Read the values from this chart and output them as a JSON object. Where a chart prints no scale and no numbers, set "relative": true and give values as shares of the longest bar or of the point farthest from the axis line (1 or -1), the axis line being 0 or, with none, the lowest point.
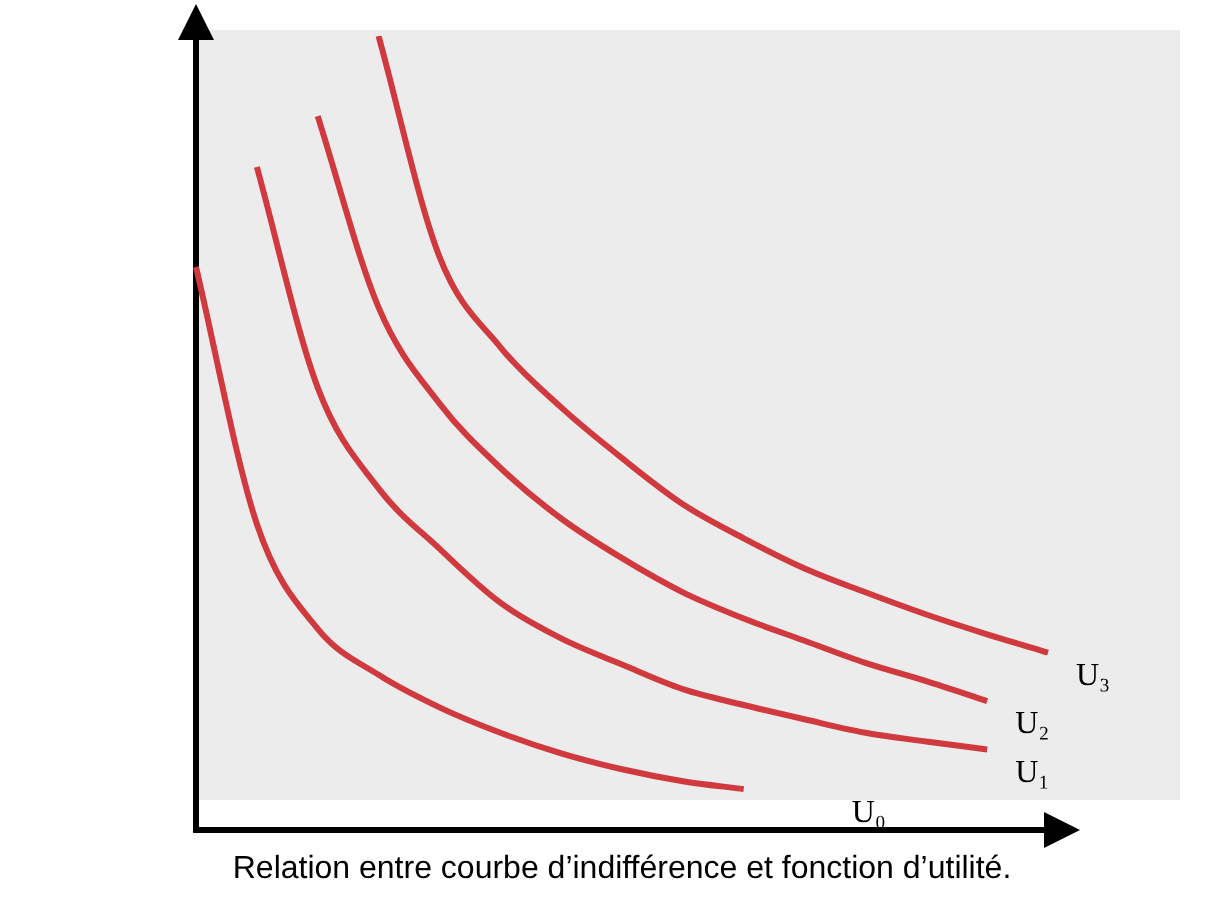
{
  "chart_data": {
    "type": "line",
    "title": "Relation entre courbe d’indifférence et fonction d’utilité.",
    "relative": true,
    "grid": false,
    "legend": false,
    "marker": "none",
    "line_style": "solid",
    "categories": [
      null,
      null,
      null,
      null,
      null,
      null,
      null,
      null,
      null,
      null,
      null,
      null,
      null,
      null,
      null
    ],
    "series": [
      {
        "name": "U₀",
        "color": "#d0393e",
        "values": [
          0.709,
          0.385,
          0.253,
          0.195,
          0.154,
          0.122,
          0.096,
          0.076,
          0.061,
          0.051,
          null,
          null,
          null,
          null,
          null
        ]
      },
      {
        "name": "U₁",
        "color": "#d0393e",
        "values": [
          null,
          0.835,
          0.557,
          0.43,
          0.354,
          0.286,
          0.241,
          0.208,
          0.177,
          0.157,
          0.139,
          0.122,
          0.111,
          0.101,
          null
        ]
      },
      {
        "name": "U₂",
        "color": "#d0393e",
        "values": [
          null,
          null,
          0.899,
          0.658,
          0.537,
          0.456,
          0.392,
          0.342,
          0.299,
          0.266,
          0.238,
          0.21,
          0.187,
          0.162,
          null
        ]
      },
      {
        "name": "U₃",
        "color": "#d0393e",
        "values": [
          null,
          null,
          null,
          1,
          0.722,
          0.608,
          0.532,
          0.468,
          0.41,
          0.367,
          0.329,
          0.299,
          0.271,
          0.246,
          0.223
        ]
      }
    ]
  }
}
